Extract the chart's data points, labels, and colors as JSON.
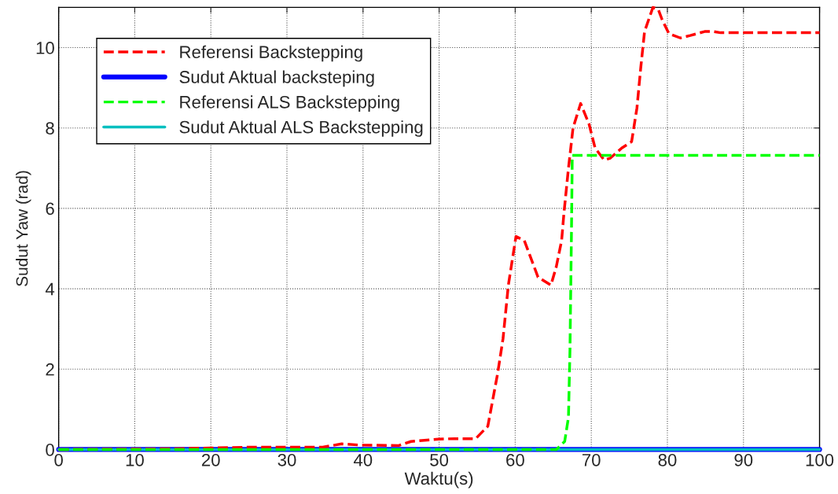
{
  "chart_data": {
    "type": "line",
    "xlabel": "Waktu(s)",
    "ylabel": "Sudut Yaw (rad)",
    "xlim": [
      0,
      100
    ],
    "xticks": [
      0,
      10,
      20,
      30,
      40,
      50,
      60,
      70,
      80,
      90,
      100
    ],
    "ylim": [
      0,
      11
    ],
    "yticks": [
      0,
      2,
      4,
      6,
      8,
      10
    ],
    "grid": true,
    "legend": "top left",
    "series": [
      {
        "name": "Referensi Backstepping",
        "color": "#ff0000",
        "line_style": "dashed",
        "x": [
          0,
          15,
          20,
          25.6,
          34.7,
          37.2,
          39.7,
          44.7,
          46.3,
          49.9,
          52,
          54.8,
          56.4,
          57.7,
          58.4,
          59.1,
          60.1,
          61.2,
          63,
          64.7,
          65.4,
          66.1,
          66.4,
          67,
          67.6,
          68.6,
          69.7,
          70.5,
          71.7,
          72.5,
          74,
          75.3,
          76,
          76.5,
          77,
          78.1,
          78.8,
          79.3,
          80.2,
          81.7,
          83,
          84.9,
          86,
          87,
          100
        ],
        "values": [
          0,
          0.02,
          0.04,
          0.06,
          0.06,
          0.14,
          0.11,
          0.1,
          0.2,
          0.26,
          0.27,
          0.27,
          0.58,
          1.9,
          2.76,
          4.09,
          5.3,
          5.2,
          4.29,
          4.09,
          4.55,
          5.2,
          5.87,
          7,
          8,
          8.61,
          8.1,
          7.5,
          7.2,
          7.25,
          7.5,
          7.66,
          8.5,
          9.5,
          10.4,
          11,
          10.95,
          10.7,
          10.35,
          10.24,
          10.3,
          10.4,
          10.4,
          10.37,
          10.37
        ]
      },
      {
        "name": "Sudut Aktual backsteping",
        "color": "#0000ff",
        "line_style": "solid",
        "x": [
          0,
          100
        ],
        "values": [
          0,
          0
        ]
      },
      {
        "name": "Referensi ALS Backstepping",
        "color": "#00ff00",
        "line_style": "dashed",
        "x": [
          0,
          65.4,
          66.5,
          67,
          67.2,
          67.4,
          67.5,
          100
        ],
        "values": [
          0,
          0,
          0.2,
          0.8,
          2.5,
          5.5,
          7.32,
          7.32
        ]
      },
      {
        "name": "Sudut Aktual ALS Backstepping",
        "color": "#00bfbf",
        "line_style": "solid",
        "x": [
          0,
          100
        ],
        "values": [
          0,
          0
        ]
      }
    ]
  }
}
